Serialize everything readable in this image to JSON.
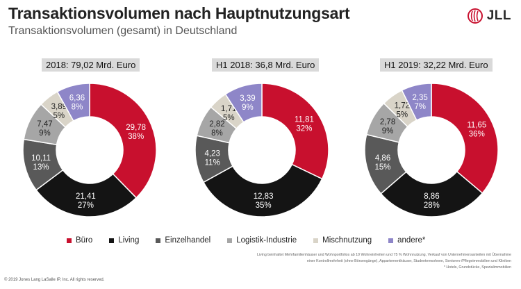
{
  "header": {
    "title": "Transaktionsvolumen nach Hauptnutzungsart",
    "subtitle": "Transaktionsvolumen (gesamt) in Deutschland",
    "logo_text": "JLL"
  },
  "colors": {
    "Büro": "#c8102e",
    "Living": "#141414",
    "Einzelhandel": "#595959",
    "Logistik-Industrie": "#a6a6a6",
    "Mischnutzung": "#d9d4c8",
    "andere*": "#8e86c8"
  },
  "chart_data": [
    {
      "type": "pie",
      "donut": true,
      "title": "2018: 79,02 Mrd. Euro",
      "slices": [
        {
          "label": "Büro",
          "value": 29.78,
          "value_text": "29,78",
          "pct_text": "38%"
        },
        {
          "label": "Living",
          "value": 21.41,
          "value_text": "21,41",
          "pct_text": "27%"
        },
        {
          "label": "Einzelhandel",
          "value": 10.11,
          "value_text": "10,11",
          "pct_text": "13%"
        },
        {
          "label": "Logistik-Industrie",
          "value": 7.47,
          "value_text": "7,47",
          "pct_text": "9%"
        },
        {
          "label": "Mischnutzung",
          "value": 3.89,
          "value_text": "3,89",
          "pct_text": "5%"
        },
        {
          "label": "andere*",
          "value": 6.36,
          "value_text": "6,36",
          "pct_text": "8%"
        }
      ]
    },
    {
      "type": "pie",
      "donut": true,
      "title": "H1 2018: 36,8 Mrd. Euro",
      "slices": [
        {
          "label": "Büro",
          "value": 11.81,
          "value_text": "11,81",
          "pct_text": "32%"
        },
        {
          "label": "Living",
          "value": 12.83,
          "value_text": "12,83",
          "pct_text": "35%"
        },
        {
          "label": "Einzelhandel",
          "value": 4.23,
          "value_text": "4,23",
          "pct_text": "11%"
        },
        {
          "label": "Logistik-Industrie",
          "value": 2.82,
          "value_text": "2,82",
          "pct_text": "8%"
        },
        {
          "label": "Mischnutzung",
          "value": 1.71,
          "value_text": "1,71",
          "pct_text": "5%"
        },
        {
          "label": "andere*",
          "value": 3.39,
          "value_text": "3,39",
          "pct_text": "9%"
        }
      ]
    },
    {
      "type": "pie",
      "donut": true,
      "title": "H1 2019: 32,22 Mrd. Euro",
      "slices": [
        {
          "label": "Büro",
          "value": 11.65,
          "value_text": "11,65",
          "pct_text": "36%"
        },
        {
          "label": "Living",
          "value": 8.86,
          "value_text": "8,86",
          "pct_text": "28%"
        },
        {
          "label": "Einzelhandel",
          "value": 4.86,
          "value_text": "4,86",
          "pct_text": "15%"
        },
        {
          "label": "Logistik-Industrie",
          "value": 2.78,
          "value_text": "2,78",
          "pct_text": "9%"
        },
        {
          "label": "Mischnutzung",
          "value": 1.72,
          "value_text": "1,72",
          "pct_text": "5%"
        },
        {
          "label": "andere*",
          "value": 2.35,
          "value_text": "2,35",
          "pct_text": "7%"
        }
      ]
    }
  ],
  "legend": [
    "Büro",
    "Living",
    "Einzelhandel",
    "Logistik-Industrie",
    "Mischnutzung",
    "andere*"
  ],
  "footnote": {
    "line1": "Living beinhaltet Mehrfamilienhäuser und Wohnportfolios ab 10 Wohneinheiten und 75 % Wohnnutzung, Verkauf von Unternehmensanteilen mit Übernahme",
    "line2": "einer Kontrollmehrheit (ohne Börsengänge), Appartementhäuser, Studentenwohnen, Senioren-/Pflegeimmobilien und Kliniken",
    "line3": "* Hotels, Grundstücke, Spezialimmobilien"
  },
  "copyright": "© 2019 Jones Lang LaSalle IP, Inc. All rights reserved."
}
